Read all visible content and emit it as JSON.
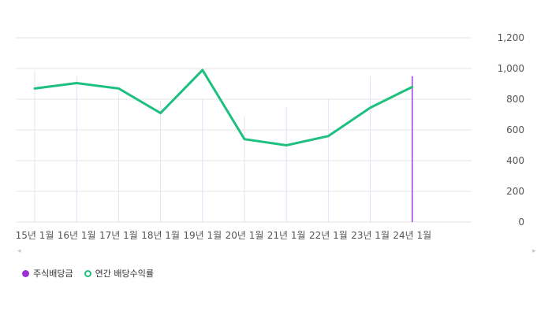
{
  "colors": {
    "dividend": "#9b30d9",
    "yield": "#1ec07f",
    "grid": "#e6e6e6",
    "bar_faint": "#ecdcf7"
  },
  "chart_data": {
    "type": "line",
    "categories": [
      "15년 1월",
      "16년 1월",
      "17년 1월",
      "18년 1월",
      "19년 1월",
      "20년 1월",
      "21년 1월",
      "22년 1월",
      "23년 1월",
      "24년 1월"
    ],
    "series": [
      {
        "name": "주식배당금",
        "kind": "bar",
        "values": [
          990,
          950,
          850,
          790,
          800,
          690,
          750,
          800,
          950,
          950
        ]
      },
      {
        "name": "연간 배당수익률",
        "kind": "line",
        "values": [
          870,
          905,
          870,
          710,
          990,
          540,
          500,
          560,
          745,
          880
        ]
      }
    ],
    "y_ticks": [
      "0",
      "200",
      "400",
      "600",
      "800",
      "1,000",
      "1,200"
    ],
    "ylim": [
      0,
      1200
    ],
    "y_axis_side": "right",
    "grid": true,
    "legend_position": "bottom-left",
    "highlighted_category": "24년 1월"
  },
  "legend": {
    "dividend_label": "주식배당금",
    "yield_label": "연간 배당수익률"
  },
  "scroll": {
    "left": "◂",
    "right": "▸"
  }
}
